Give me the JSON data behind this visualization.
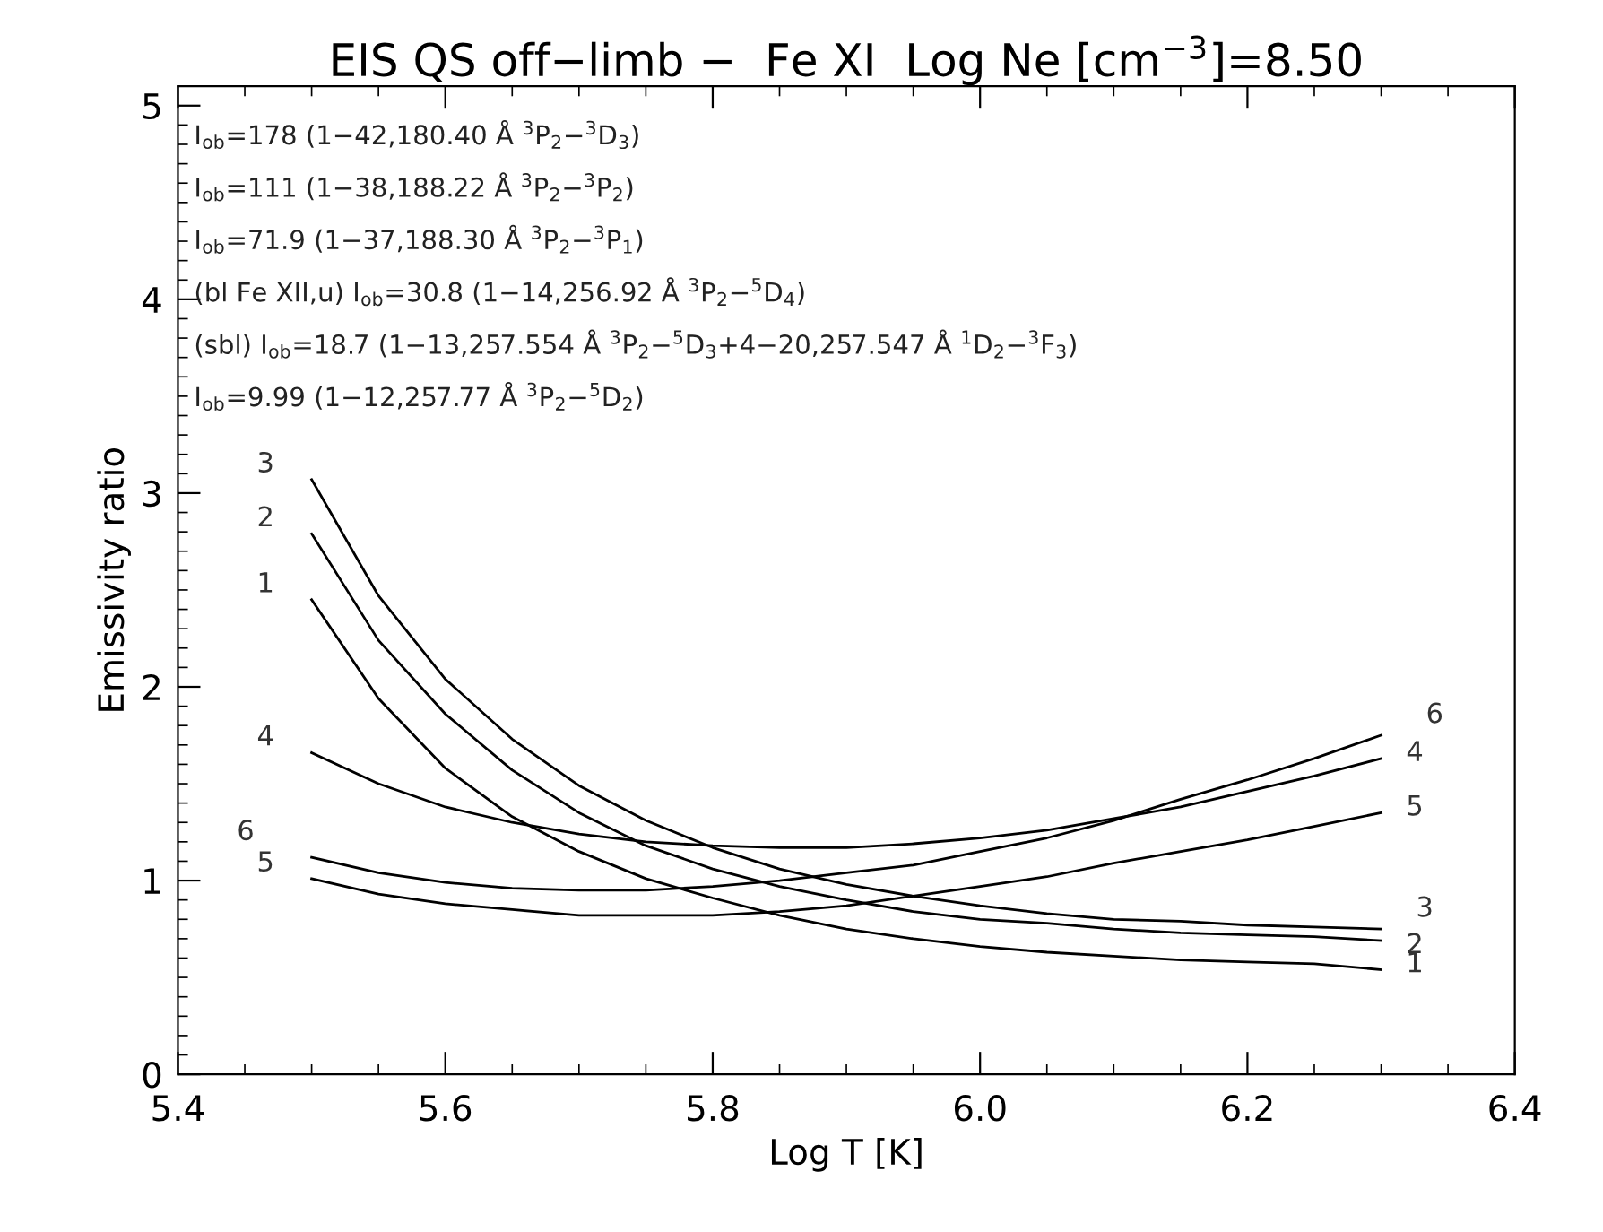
{
  "chart_data": {
    "type": "line",
    "title": "EIS QS off−limb −  Fe XI  Log Ne [cm$^{−3}$]=8.50",
    "xlabel": "Log T [K]",
    "ylabel": "Emissivity ratio",
    "x": [
      5.5,
      5.55,
      5.6,
      5.65,
      5.7,
      5.75,
      5.8,
      5.85,
      5.9,
      5.95,
      6.0,
      6.05,
      6.1,
      6.15,
      6.2,
      6.25,
      6.3
    ],
    "series": [
      {
        "name": "1",
        "color": "#000000",
        "values": [
          2.45,
          1.94,
          1.58,
          1.33,
          1.15,
          1.01,
          0.91,
          0.82,
          0.75,
          0.7,
          0.66,
          0.63,
          0.61,
          0.59,
          0.58,
          0.57,
          0.54
        ]
      },
      {
        "name": "2",
        "color": "#000000",
        "values": [
          2.79,
          2.24,
          1.86,
          1.57,
          1.35,
          1.18,
          1.06,
          0.97,
          0.9,
          0.84,
          0.8,
          0.78,
          0.75,
          0.73,
          0.72,
          0.71,
          0.69
        ]
      },
      {
        "name": "3",
        "color": "#000000",
        "values": [
          3.07,
          2.47,
          2.04,
          1.73,
          1.49,
          1.31,
          1.17,
          1.06,
          0.98,
          0.92,
          0.87,
          0.83,
          0.8,
          0.79,
          0.77,
          0.76,
          0.75
        ]
      },
      {
        "name": "4",
        "color": "#000000",
        "values": [
          1.66,
          1.5,
          1.38,
          1.3,
          1.24,
          1.2,
          1.18,
          1.17,
          1.17,
          1.19,
          1.22,
          1.26,
          1.32,
          1.38,
          1.46,
          1.54,
          1.63
        ]
      },
      {
        "name": "5",
        "color": "#000000",
        "values": [
          1.01,
          0.93,
          0.88,
          0.85,
          0.82,
          0.82,
          0.82,
          0.84,
          0.87,
          0.92,
          0.97,
          1.02,
          1.09,
          1.15,
          1.21,
          1.28,
          1.35
        ]
      },
      {
        "name": "6",
        "color": "#000000",
        "values": [
          1.12,
          1.04,
          0.99,
          0.96,
          0.95,
          0.95,
          0.97,
          1.0,
          1.04,
          1.08,
          1.15,
          1.22,
          1.31,
          1.42,
          1.52,
          1.63,
          1.75
        ]
      }
    ],
    "annotations": [
      "I$_{ob}$=178 (1−42,180.40 Å $^{3}$P$_{2}$−$^{3}$D$_{3}$)",
      "I$_{ob}$=111 (1−38,188.22 Å $^{3}$P$_{2}$−$^{3}$P$_{2}$)",
      "I$_{ob}$=71.9 (1−37,188.30 Å $^{3}$P$_{2}$−$^{3}$P$_{1}$)",
      "(bl Fe XII,u) I$_{ob}$=30.8 (1−14,256.92 Å $^{3}$P$_{2}$−$^{5}$D$_{4}$)",
      "(sbl) I$_{ob}$=18.7 (1−13,257.554 Å $^{3}$P$_{2}$−$^{5}$D$_{3}$+4−20,257.547 Å $^{1}$D$_{2}$−$^{3}$F$_{3}$)",
      "I$_{ob}$=9.99 (1−12,257.77 Å $^{3}$P$_{2}$−$^{5}$D$_{2}$)"
    ],
    "xlim": [
      5.4,
      6.4
    ],
    "xticks": [
      {
        "value": 5.4,
        "label": "5.4"
      },
      {
        "value": 5.6,
        "label": "5.6"
      },
      {
        "value": 5.8,
        "label": "5.8"
      },
      {
        "value": 6.0,
        "label": "6.0"
      },
      {
        "value": 6.2,
        "label": "6.2"
      },
      {
        "value": 6.4,
        "label": "6.4"
      }
    ],
    "ylim": [
      0,
      5.1
    ],
    "yticks": [
      0,
      1,
      2,
      3,
      4,
      5
    ],
    "grid": false,
    "legend": false,
    "marker": "none",
    "line_style": "solid"
  }
}
